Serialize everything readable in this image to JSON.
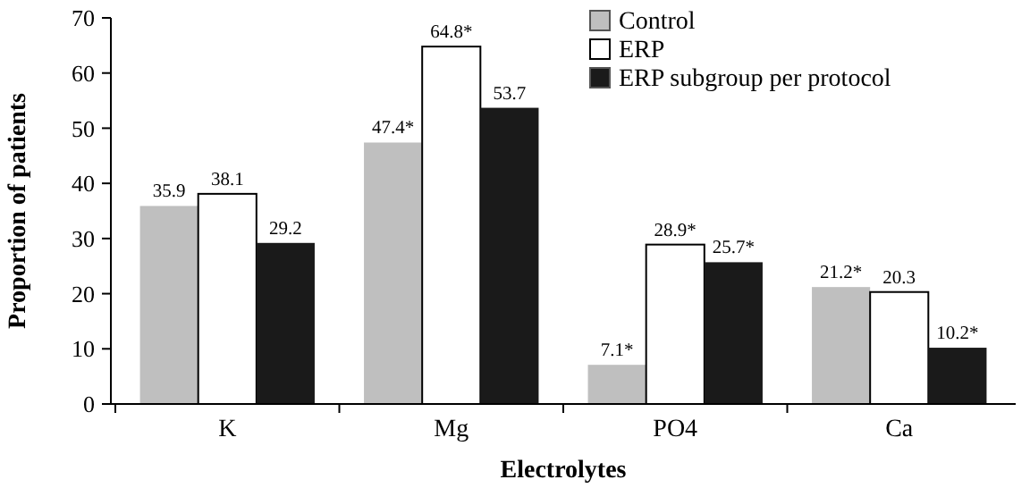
{
  "chart_data": {
    "type": "bar",
    "xlabel": "Electrolytes",
    "ylabel": "Proportion of patients",
    "categories": [
      "K",
      "Mg",
      "PO4",
      "Ca"
    ],
    "series": [
      {
        "name": "Control",
        "color": "#bfbfbf",
        "values": [
          35.9,
          47.4,
          7.1,
          21.2
        ],
        "value_labels": [
          "35.9",
          "47.4*",
          "7.1*",
          "21.2*"
        ]
      },
      {
        "name": "ERP",
        "color": "#ffffff",
        "values": [
          38.1,
          64.8,
          28.9,
          20.3
        ],
        "value_labels": [
          "38.1",
          "64.8*",
          "28.9*",
          "20.3"
        ]
      },
      {
        "name": "ERP subgroup per protocol",
        "color": "#1a1a1a",
        "values": [
          29.2,
          53.7,
          25.7,
          10.2
        ],
        "value_labels": [
          "29.2",
          "53.7",
          "25.7*",
          "10.2*"
        ]
      }
    ],
    "ylim": [
      0,
      70
    ],
    "yticks": [
      0,
      10,
      20,
      30,
      40,
      50,
      60,
      70
    ],
    "grid": false,
    "legend": "top right"
  }
}
